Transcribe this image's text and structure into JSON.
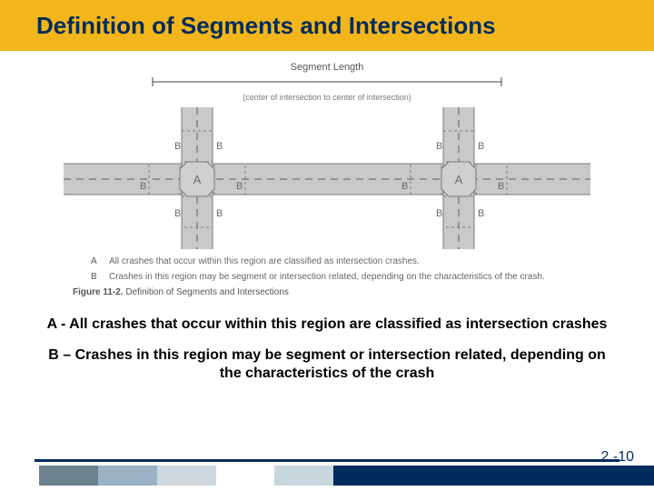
{
  "title": "Definition of Segments and Intersections",
  "figure": {
    "segment_label": "Segment Length",
    "segment_sub": "(center of intersection to center of intersection)",
    "node_A": "A",
    "node_B": "B",
    "def_A": "All crashes that occur within this region are classified as intersection crashes.",
    "def_B": "Crashes in this region may be segment or intersection related, depending on the characteristics of the crash.",
    "caption_bold": "Figure 11-2.",
    "caption_rest": " Definition of Segments and Intersections",
    "road_fill": "#c9c9c9",
    "road_edge": "#7a7a7a",
    "octagon_fill": "#d0d0d0",
    "label_color": "#6b6b6b",
    "dash_color": "#5a5a5a"
  },
  "body": {
    "text_A": "A - All crashes that occur within this region are classified as intersection crashes",
    "text_B": "B – Crashes in this region may be segment or intersection related, depending on the characteristics of the crash"
  },
  "footer": {
    "page": "2 -10",
    "bars": [
      {
        "w": "6%",
        "c": "#ffffff"
      },
      {
        "w": "9%",
        "c": "#6e8390"
      },
      {
        "w": "9%",
        "c": "#9bb2c5"
      },
      {
        "w": "9%",
        "c": "#cfd8de"
      },
      {
        "w": "9%",
        "c": "#ffffff"
      },
      {
        "w": "9%",
        "c": "#c8d6dd"
      },
      {
        "w": "49%",
        "c": "#002b5c"
      }
    ]
  }
}
